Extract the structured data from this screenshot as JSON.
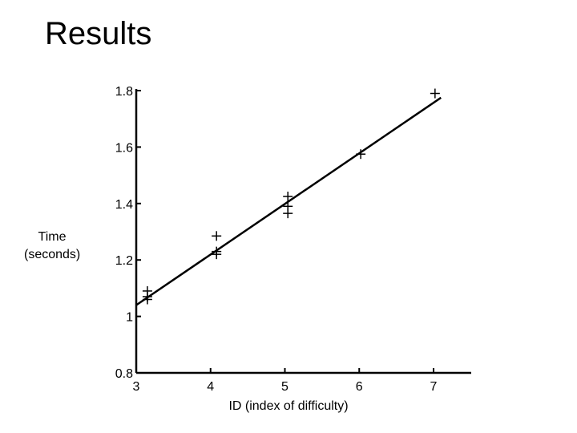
{
  "slide": {
    "title": "Results"
  },
  "chart_data": {
    "type": "scatter",
    "xlabel": "ID (index of difficulty)",
    "ylabel_lines": [
      "Time",
      "(seconds)"
    ],
    "xlim": [
      3,
      7.5
    ],
    "ylim": [
      0.8,
      1.8
    ],
    "xticks": [
      3,
      4,
      5,
      6,
      7
    ],
    "yticks": [
      {
        "value": 0.8,
        "label": "0.8"
      },
      {
        "value": 1.0,
        "label": "1"
      },
      {
        "value": 1.2,
        "label": "1.2"
      },
      {
        "value": 1.4,
        "label": "1.4"
      },
      {
        "value": 1.6,
        "label": "1.6"
      },
      {
        "value": 1.8,
        "label": "1.8"
      }
    ],
    "grid": false,
    "marker": "+",
    "points": [
      {
        "x": 3.15,
        "y": 1.09
      },
      {
        "x": 3.15,
        "y": 1.07
      },
      {
        "x": 3.15,
        "y": 1.06
      },
      {
        "x": 4.08,
        "y": 1.285
      },
      {
        "x": 4.08,
        "y": 1.23
      },
      {
        "x": 4.08,
        "y": 1.22
      },
      {
        "x": 5.04,
        "y": 1.425
      },
      {
        "x": 5.04,
        "y": 1.39
      },
      {
        "x": 5.04,
        "y": 1.365
      },
      {
        "x": 6.02,
        "y": 1.575
      },
      {
        "x": 7.02,
        "y": 1.79
      }
    ],
    "fit_line": {
      "x": [
        3.0,
        7.1
      ],
      "y": [
        1.04,
        1.775
      ]
    }
  }
}
